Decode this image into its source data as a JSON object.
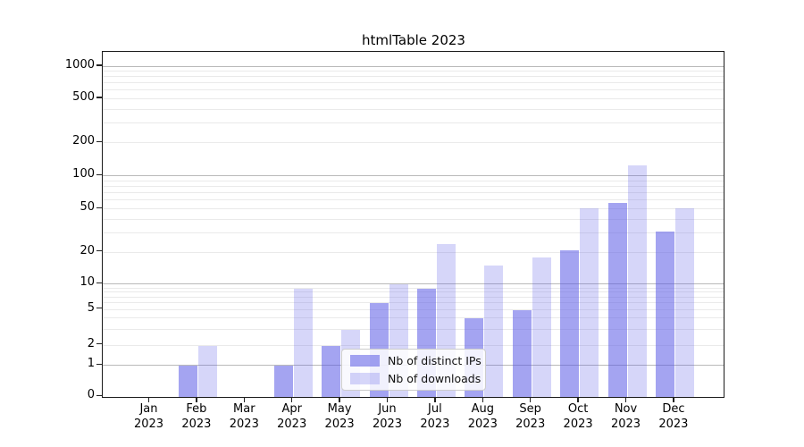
{
  "title": "htmlTable 2023",
  "chart_data": {
    "type": "bar",
    "title": "htmlTable 2023",
    "scale": "symlog",
    "grid": true,
    "legend_position": "lower-center-inside",
    "months": [
      "Jan",
      "Feb",
      "Mar",
      "Apr",
      "May",
      "Jun",
      "Jul",
      "Aug",
      "Sep",
      "Oct",
      "Nov",
      "Dec"
    ],
    "year_label": "2023",
    "yticks": [
      0,
      1,
      2,
      5,
      10,
      20,
      50,
      100,
      200,
      500,
      1000
    ],
    "minor_gridlines": [
      3,
      4,
      6,
      7,
      8,
      9,
      30,
      40,
      60,
      70,
      80,
      90,
      300,
      400,
      600,
      700,
      800,
      900
    ],
    "major_gridlines": [
      1,
      10,
      100,
      1000
    ],
    "ylim": [
      0,
      1200
    ],
    "series": [
      {
        "name": "Nb of distinct IPs",
        "color": "rgba(90,90,230,0.55)",
        "values": [
          0,
          1,
          0,
          1,
          2,
          6,
          9,
          4,
          5,
          21,
          57,
          31
        ]
      },
      {
        "name": "Nb of downloads",
        "color": "rgba(90,90,230,0.25)",
        "values": [
          0,
          2,
          0,
          9,
          3,
          10,
          24,
          15,
          18,
          51,
          125,
          51
        ]
      }
    ]
  }
}
